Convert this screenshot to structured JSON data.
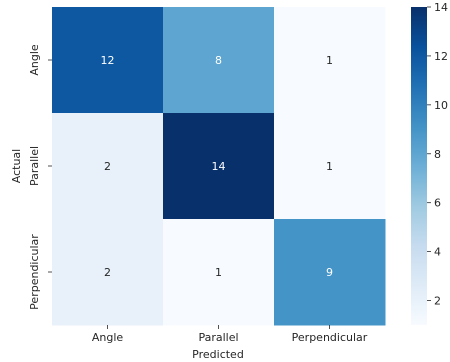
{
  "chart_data": {
    "type": "heatmap",
    "xlabel": "Predicted",
    "ylabel": "Actual",
    "x_categories": [
      "Angle",
      "Parallel",
      "Perpendicular"
    ],
    "y_categories": [
      "Angle",
      "Parallel",
      "Perpendicular"
    ],
    "values": [
      [
        12,
        8,
        1
      ],
      [
        2,
        14,
        1
      ],
      [
        2,
        1,
        9
      ]
    ],
    "colormap": "Blues",
    "colorbar": {
      "vmin": 1,
      "vmax": 14,
      "ticks": [
        2,
        4,
        6,
        8,
        10,
        12,
        14
      ]
    }
  }
}
